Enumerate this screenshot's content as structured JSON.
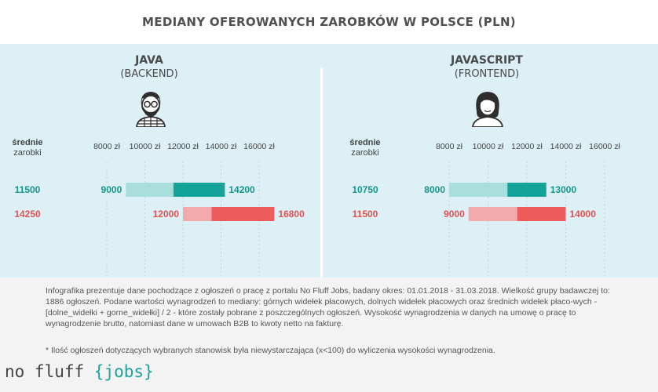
{
  "title": "MEDIANY OFEROWANYCH ZAROBKÓW W POLSCE (PLN)",
  "avg_label_line1": "średnie",
  "avg_label_line2": "zarobki",
  "chart_data": [
    {
      "type": "bar",
      "title": "JAVA",
      "subtitle": "(BACKEND)",
      "avatar_icon": "male-developer-icon",
      "x_ticks": [
        8000,
        10000,
        12000,
        14000,
        16000
      ],
      "x_tick_labels": [
        "8000 zł",
        "10000 zł",
        "12000 zł",
        "14000 zł",
        "16000 zł"
      ],
      "xlim": [
        8000,
        16000
      ],
      "ranges": [
        {
          "low": 9000,
          "median": 11500,
          "high": 14200,
          "avg": 11500,
          "avg_label": "11500",
          "low_label": "9000",
          "high_label": "14200",
          "light_color": "#a8dfdc",
          "dark_color": "#14a398",
          "label_color": "#14968c"
        },
        {
          "low": 12000,
          "median": 13500,
          "high": 16800,
          "avg": 14250,
          "avg_label": "14250",
          "low_label": "12000",
          "high_label": "16800",
          "light_color": "#f3aaaa",
          "dark_color": "#ee5b5b",
          "label_color": "#e05252"
        }
      ]
    },
    {
      "type": "bar",
      "title": "JAVASCRIPT",
      "subtitle": "(FRONTEND)",
      "avatar_icon": "female-developer-icon",
      "x_ticks": [
        8000,
        10000,
        12000,
        14000,
        16000
      ],
      "x_tick_labels": [
        "8000 zł",
        "10000 zł",
        "12000 zł",
        "14000 zł",
        "16000 zł"
      ],
      "xlim": [
        8000,
        16000
      ],
      "ranges": [
        {
          "low": 8000,
          "median": 11000,
          "high": 13000,
          "avg": 10750,
          "avg_label": "10750",
          "low_label": "8000",
          "high_label": "13000",
          "light_color": "#a8dfdc",
          "dark_color": "#14a398",
          "label_color": "#14968c"
        },
        {
          "low": 9000,
          "median": 11500,
          "high": 14000,
          "avg": 11500,
          "avg_label": "11500",
          "low_label": "9000",
          "high_label": "14000",
          "light_color": "#f3aaaa",
          "dark_color": "#ee5b5b",
          "label_color": "#e05252"
        }
      ]
    }
  ],
  "note": "Infografika prezentuje dane pochodzące z ogłoszeń o pracę z portalu No Fluff Jobs, badany okres: 01.01.2018 - 31.03.2018. Wielkość grupy badawczej to: 1886 ogłoszeń. Podane wartości wynagrodzeń to mediany: górnych widełek płacowych, dolnych widełek płacowych oraz średnich widełek płaco-wych - [dolne_widełki + gorne_widełki] / 2 - które zostały pobrane z poszczególnych ogłoszeń. Wysokość wynagrodzenia w danych na umowę o pracę to wynagrodzenie brutto, natomiast dane w umowach B2B to kwoty netto na fakturę.",
  "footnote": "* Ilość ogłoszeń dotyczących wybranych stanowisk była niewystarczająca (x<100) do wyliczenia wysokości wynagrodzenia.",
  "logo": {
    "part1": "no fluff ",
    "part2": "{jobs}"
  }
}
